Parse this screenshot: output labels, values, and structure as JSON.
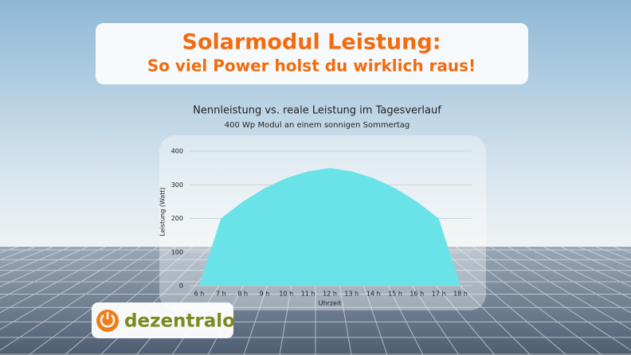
{
  "header": {
    "title": "Solarmodul Leistung:",
    "subtitle": "So viel Power holst du wirklich raus!"
  },
  "logo": {
    "text": "dezentralo"
  },
  "chart_data": {
    "type": "area",
    "title": "Nennleistung vs. reale Leistung im Tagesverlauf",
    "subtitle": "400 Wp Modul an einem sonnigen Sommertag",
    "x_label": "Uhrzeit",
    "y_label": "Leistung (Watt)",
    "categories": [
      "6 h",
      "7 h",
      "8 h",
      "9 h",
      "10 h",
      "11 h",
      "12 h",
      "13 h",
      "14 h",
      "15 h",
      "16 h",
      "17 h",
      "18 h"
    ],
    "values": [
      0,
      200,
      250,
      290,
      320,
      340,
      350,
      340,
      320,
      290,
      250,
      200,
      0
    ],
    "color": "#6ae3e8",
    "ylim": [
      0,
      400
    ],
    "yticks": [
      0,
      100,
      200,
      300,
      400
    ],
    "grid": true
  }
}
